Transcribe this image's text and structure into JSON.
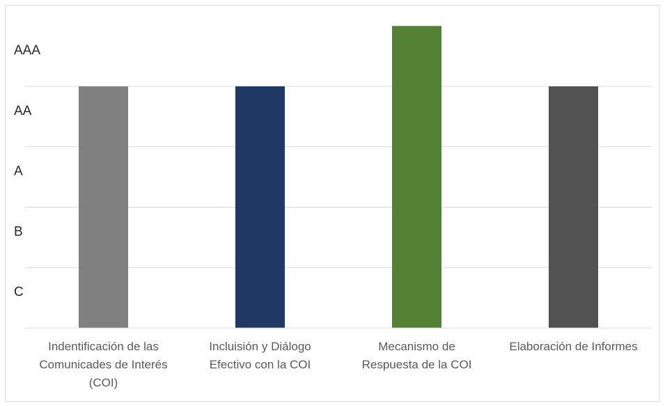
{
  "chart_data": {
    "type": "bar",
    "categories": [
      [
        "Indentificación de las",
        "Comunicades de Interés",
        "(COI)"
      ],
      [
        "Incluisión y Diálogo",
        "Efectivo con la COI"
      ],
      [
        "Mecanismo de",
        "Respuesta de la COI"
      ],
      [
        "Elaboración de Informes"
      ]
    ],
    "y_levels": [
      "C",
      "B",
      "A",
      "AA",
      "AAA"
    ],
    "values": [
      "AA",
      "AA",
      "AAA",
      "AA"
    ],
    "colors": [
      "#808080",
      "#1f3864",
      "#548235",
      "#525252"
    ],
    "grid": true,
    "legend": "none"
  }
}
